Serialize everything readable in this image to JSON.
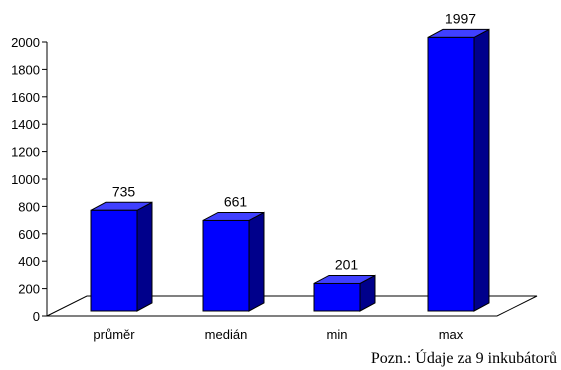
{
  "chart_data": {
    "type": "bar",
    "categories": [
      "průměr",
      "medián",
      "min",
      "max"
    ],
    "values": [
      735,
      661,
      201,
      1997
    ],
    "data_labels": [
      "735",
      "661",
      "201",
      "1997"
    ],
    "y_ticks": [
      "0",
      "200",
      "400",
      "600",
      "800",
      "1000",
      "1200",
      "1400",
      "1600",
      "1800",
      "2000"
    ],
    "ylim": [
      0,
      2000
    ],
    "title": "",
    "xlabel": "",
    "ylabel": "",
    "grid": false,
    "style": "3d-column",
    "colors": {
      "bar_front": "#0000ff",
      "bar_top": "#4040ff",
      "bar_side": "#00008b",
      "outline": "#000000"
    }
  },
  "note": "Pozn.: Údaje za 9 inkubátorů"
}
